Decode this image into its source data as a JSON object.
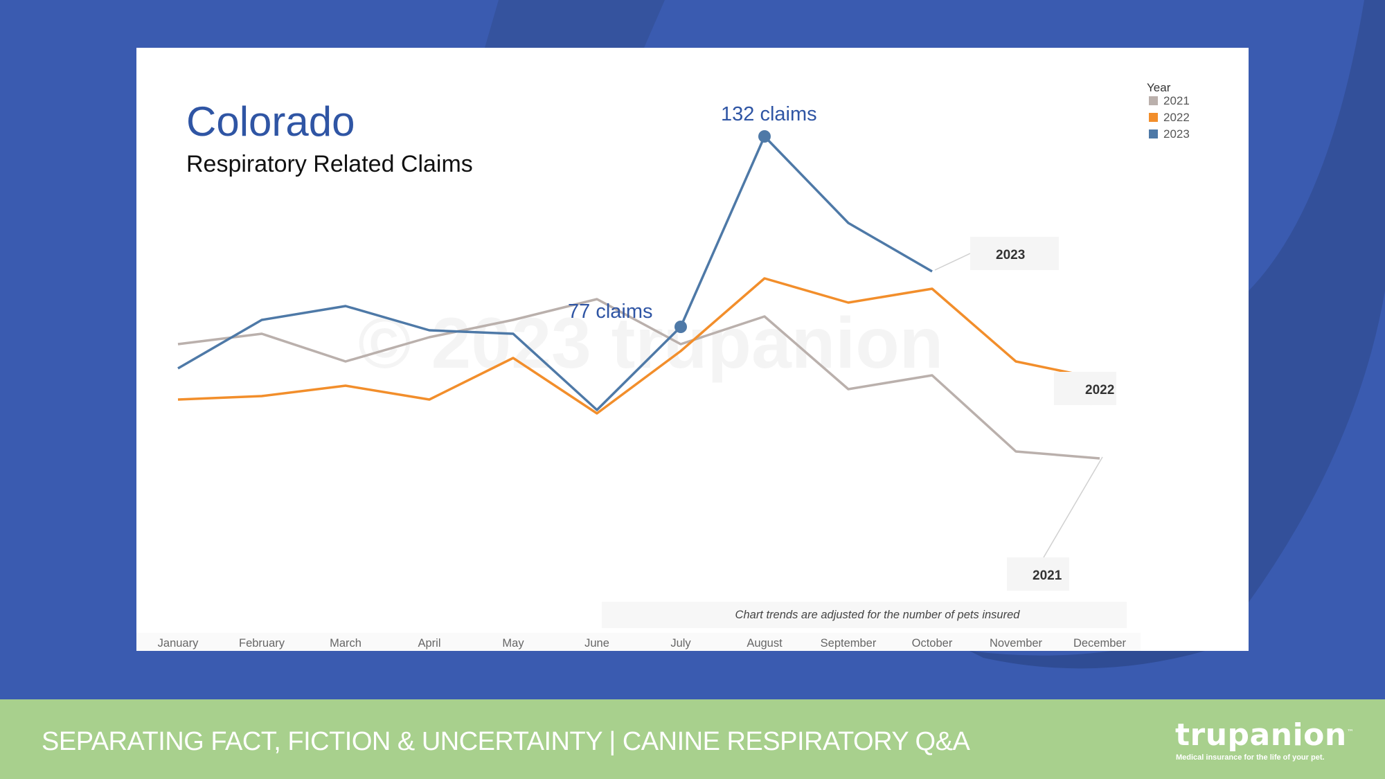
{
  "footer": {
    "title": "SEPARATING FACT, FICTION & UNCERTAINTY | CANINE RESPIRATORY Q&A",
    "brand": "trupanion",
    "brand_tagline": "Medical insurance for the life of your pet."
  },
  "watermark": "© 2023 trupanion",
  "colors": {
    "background": "#3a5bb0",
    "footer": "#a8d08d",
    "series_2021": "#bab0ac",
    "series_2022": "#f28e2b",
    "series_2023": "#4e79a7",
    "title": "#2f55a4"
  },
  "chart_data": {
    "type": "line",
    "title": "Colorado",
    "subtitle": "Respiratory Related Claims",
    "xlabel": "",
    "ylabel": "",
    "grid": false,
    "legend_position": "top-right",
    "legend_title": "Year",
    "categories": [
      "January",
      "February",
      "March",
      "April",
      "May",
      "June",
      "July",
      "August",
      "September",
      "October",
      "November",
      "December"
    ],
    "ylim": [
      20,
      140
    ],
    "series": [
      {
        "name": "2021",
        "color": "#bab0ac",
        "values": [
          72,
          75,
          67,
          74,
          79,
          85,
          72,
          80,
          59,
          63,
          41,
          39
        ]
      },
      {
        "name": "2022",
        "color": "#f28e2b",
        "values": [
          56,
          57,
          60,
          56,
          68,
          52,
          70,
          91,
          84,
          88,
          67,
          62
        ]
      },
      {
        "name": "2023",
        "color": "#4e79a7",
        "values": [
          65,
          79,
          83,
          76,
          75,
          53,
          77,
          132,
          107,
          93,
          null,
          null
        ]
      }
    ],
    "annotations": [
      {
        "text": "77 claims",
        "series": "2023",
        "category": "July",
        "value": 77
      },
      {
        "text": "132 claims",
        "series": "2023",
        "category": "August",
        "value": 132
      }
    ],
    "end_labels": [
      "2023",
      "2022",
      "2021"
    ],
    "footnote": "Chart trends are adjusted for the number of pets insured"
  }
}
